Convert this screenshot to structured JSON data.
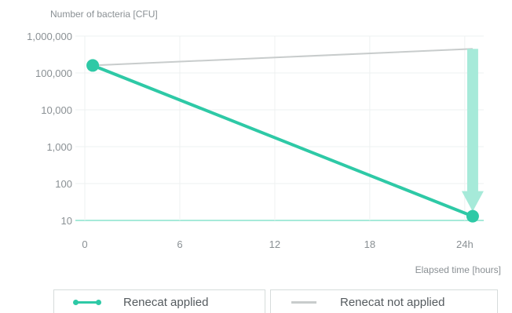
{
  "colors": {
    "applied": "#2ec9a6",
    "applied_light": "#a6ead9",
    "not_applied": "#c8cccc",
    "grid": "#eef1f1",
    "text": "#8a9094"
  },
  "chart_data": {
    "type": "line",
    "ylabel": "Number of bacteria [CFU]",
    "xlabel": "Elapsed time [hours]",
    "yscale": "log",
    "ylim": [
      10,
      1000000
    ],
    "xlim": [
      0,
      25
    ],
    "y_ticks": [
      {
        "value": 1000000,
        "label": "1,000,000"
      },
      {
        "value": 100000,
        "label": "100,000"
      },
      {
        "value": 10000,
        "label": "10,000"
      },
      {
        "value": 1000,
        "label": "1,000"
      },
      {
        "value": 100,
        "label": "100"
      },
      {
        "value": 10,
        "label": "10"
      }
    ],
    "x_ticks": [
      {
        "value": 0,
        "label": "0"
      },
      {
        "value": 6,
        "label": "6"
      },
      {
        "value": 12,
        "label": "12"
      },
      {
        "value": 18,
        "label": "18"
      },
      {
        "value": 24,
        "label": "24h"
      }
    ],
    "series": [
      {
        "name": "Renecat applied",
        "color": "#2ec9a6",
        "x": [
          0.5,
          24.5
        ],
        "y": [
          160000,
          13
        ]
      },
      {
        "name": "Renecat not applied",
        "color": "#c8cccc",
        "x": [
          0.5,
          24.5
        ],
        "y": [
          160000,
          450000
        ]
      }
    ],
    "annotation": {
      "type": "down-arrow",
      "x": 24.5,
      "from_y": 450000,
      "to_y": 13
    },
    "grid": true,
    "legend_position": "bottom"
  }
}
